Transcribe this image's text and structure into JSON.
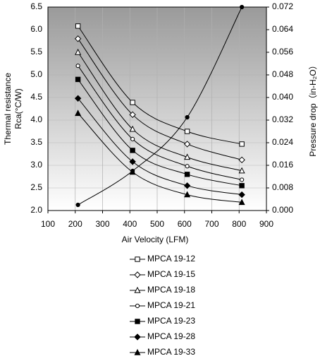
{
  "chart_data": {
    "type": "line",
    "x_label": "Air Velocity (LFM)",
    "y_label": [
      "Thermal resistance",
      "Rca(°C/W)"
    ],
    "y2_label": "Pressure drop（in-H₂O）",
    "x": [
      210,
      410,
      610,
      810
    ],
    "xlim": [
      100,
      900
    ],
    "xticks": [
      100,
      200,
      300,
      400,
      500,
      600,
      700,
      800,
      900
    ],
    "ylim": [
      2,
      6.5
    ],
    "yticks": [
      {
        "value": 2,
        "label": "2.0"
      },
      2.5,
      {
        "value": 3,
        "label": "3.0"
      },
      3.5,
      {
        "value": 4,
        "label": "4.0"
      },
      4.5,
      {
        "value": 5,
        "label": "5.0"
      },
      5.5,
      {
        "value": 6,
        "label": "6.0"
      },
      6.5
    ],
    "y2lim": [
      0,
      0.072
    ],
    "y2ticks": [
      {
        "value": 0,
        "label": "0.000"
      },
      0.008,
      0.016,
      0.024,
      0.032,
      {
        "value": 0.04,
        "label": "0.040"
      },
      0.048,
      0.056,
      0.064,
      0.072
    ],
    "grid": true,
    "series": [
      {
        "name": "MPCA 19-12",
        "color": "#000000",
        "marker": "square-open",
        "values": [
          6.08,
          4.39,
          3.75,
          3.47
        ]
      },
      {
        "name": "MPCA 19-15",
        "color": "#000000",
        "marker": "diamond-open",
        "values": [
          5.8,
          4.12,
          3.47,
          3.12
        ]
      },
      {
        "name": "MPCA 19-18",
        "color": "#000000",
        "marker": "triangle-open",
        "values": [
          5.5,
          3.8,
          3.18,
          2.88
        ]
      },
      {
        "name": "MPCA 19-21",
        "color": "#000000",
        "marker": "circle-open",
        "values": [
          5.2,
          3.58,
          2.98,
          2.68
        ]
      },
      {
        "name": "MPCA 19-23",
        "color": "#000000",
        "marker": "square",
        "values": [
          4.9,
          3.33,
          2.8,
          2.55
        ]
      },
      {
        "name": "MPCA 19-28",
        "color": "#000000",
        "marker": "diamond",
        "values": [
          4.48,
          3.08,
          2.55,
          2.35
        ]
      },
      {
        "name": "MPCA 19-33",
        "color": "#000000",
        "marker": "triangle",
        "values": [
          4.15,
          2.85,
          2.35,
          2.18
        ]
      },
      {
        "color": "#000000",
        "marker": "circle",
        "axis": "y2",
        "values": [
          0.002,
          0.014,
          0.033,
          0.072
        ]
      }
    ]
  }
}
